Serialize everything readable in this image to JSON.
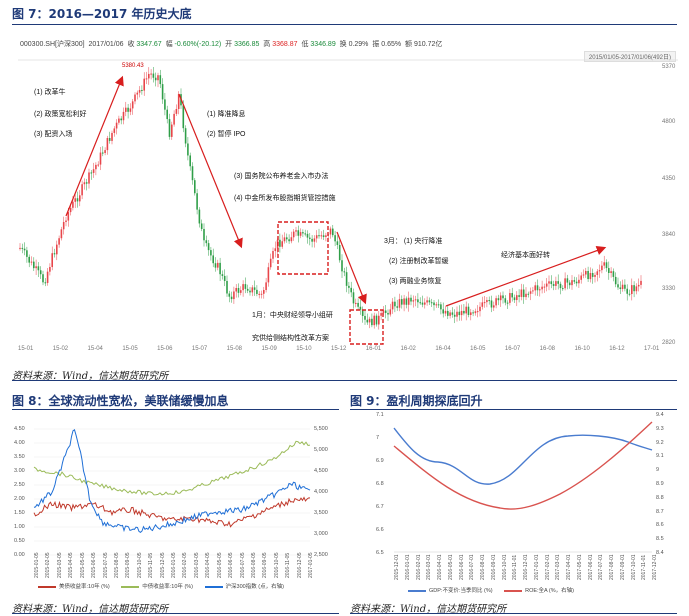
{
  "fig7": {
    "title": "图 7：2016—2017 年历史大底",
    "ticker": {
      "code": "000300.SH[沪深300]",
      "date": "2017/01/06",
      "close_label": "收",
      "close": "3347.67",
      "change_label": "幅",
      "change": "-0.60%(-20.12)",
      "open_label": "开",
      "open": "3366.85",
      "high_label": "高",
      "high": "3368.87",
      "low_label": "低",
      "low": "3346.89",
      "turnover_label": "换",
      "turnover": "0.29%",
      "amp_label": "振",
      "amp": "0.65%",
      "amount_label": "额",
      "amount": "910.72亿"
    },
    "range": "2015/01/05-2017/01/06(492日)",
    "peak_label": "5380.43",
    "y_ticks": [
      "5370",
      "4800",
      "4350",
      "3840",
      "3330",
      "2820"
    ],
    "x_ticks": [
      "15-01",
      "15-02",
      "15-04",
      "15-05",
      "15-06",
      "15-07",
      "15-08",
      "15-09",
      "15-10",
      "15-12",
      "16-01",
      "16-02",
      "16-04",
      "16-05",
      "16-07",
      "16-08",
      "16-10",
      "16-12",
      "17-01"
    ],
    "notes": {
      "a1": "(1)  改革牛",
      "a2": "(2)  政策宽松利好",
      "a3": "(3)  配资入场",
      "b1": "(1)  降准降息",
      "b2": "(2)  暂停 IPO",
      "c1": "(3)  国务院公布养老金入市办法",
      "c2": "(4)  中金所发布股指期货管控措施",
      "d1": "1月：中央财经领导小组研",
      "d2": "究供给侧结构性改革方案",
      "e1": "3月：  (1)  央行降准",
      "e2": "(2)  注册制改革暂缓",
      "e3": "(3)  两融业务恢复",
      "f1": "经济基本面好转"
    },
    "source": "资料来源：Wind，信达期货研究所",
    "colors": {
      "up": "#e8454a",
      "down": "#2f9e48",
      "arrow": "#d81e1e",
      "box": "#d81e1e"
    }
  },
  "fig8": {
    "title": "图 8：全球流动性宽松，美联储缓慢加息",
    "left_ticks": [
      "4.50",
      "4.00",
      "3.50",
      "3.00",
      "2.50",
      "2.00",
      "1.50",
      "1.00",
      "0.50",
      "0.00"
    ],
    "right_ticks": [
      "5,500",
      "5,000",
      "4,500",
      "4,000",
      "3,500",
      "3,000",
      "2,500"
    ],
    "date_ticks": [
      "2015-01-05",
      "2015-02-05",
      "2015-03-05",
      "2015-04-05",
      "2015-05-05",
      "2015-06-05",
      "2015-07-05",
      "2015-08-05",
      "2015-09-05",
      "2015-10-05",
      "2015-11-05",
      "2015-12-05",
      "2016-01-05",
      "2016-02-05",
      "2016-03-05",
      "2016-04-05",
      "2016-05-05",
      "2016-06-05",
      "2016-07-05",
      "2016-08-05",
      "2016-09-05",
      "2016-10-05",
      "2016-11-05",
      "2016-12-05",
      "2017-01-05"
    ],
    "legend": [
      "美债收益率:10年 (%)",
      "中债收益率:10年 (%)",
      "沪深300指数 (点，右轴)"
    ],
    "source": "资料来源：Wind，信达期货研究所",
    "colors": [
      "#c0392b",
      "#9bbb59",
      "#1f6fd6"
    ]
  },
  "fig9": {
    "title": "图 9：盈利周期探底回升",
    "left_ticks": [
      "7.1",
      "7",
      "6.9",
      "6.8",
      "6.7",
      "6.6",
      "6.5"
    ],
    "right_ticks": [
      "9.4",
      "9.3",
      "9.2",
      "9.1",
      "9",
      "8.9",
      "8.8",
      "8.7",
      "8.6",
      "8.5",
      "8.4"
    ],
    "date_ticks": [
      "2015-12-01",
      "2016-01-01",
      "2016-02-01",
      "2016-03-01",
      "2016-04-01",
      "2016-05-01",
      "2016-06-01",
      "2016-07-01",
      "2016-08-01",
      "2016-09-01",
      "2016-10-01",
      "2016-11-01",
      "2016-12-01",
      "2017-01-01",
      "2017-02-01",
      "2017-03-01",
      "2017-04-01",
      "2017-05-01",
      "2017-06-01",
      "2017-07-01",
      "2017-08-01",
      "2017-09-01",
      "2017-10-01",
      "2017-11-01",
      "2017-12-01"
    ],
    "legend": [
      "GDP:不变价:当季同比 (%)",
      "ROE:全A (%，右轴)"
    ],
    "source": "资料来源：Wind，信达期货研究所",
    "colors": [
      "#4a7ccf",
      "#d9534f"
    ]
  }
}
